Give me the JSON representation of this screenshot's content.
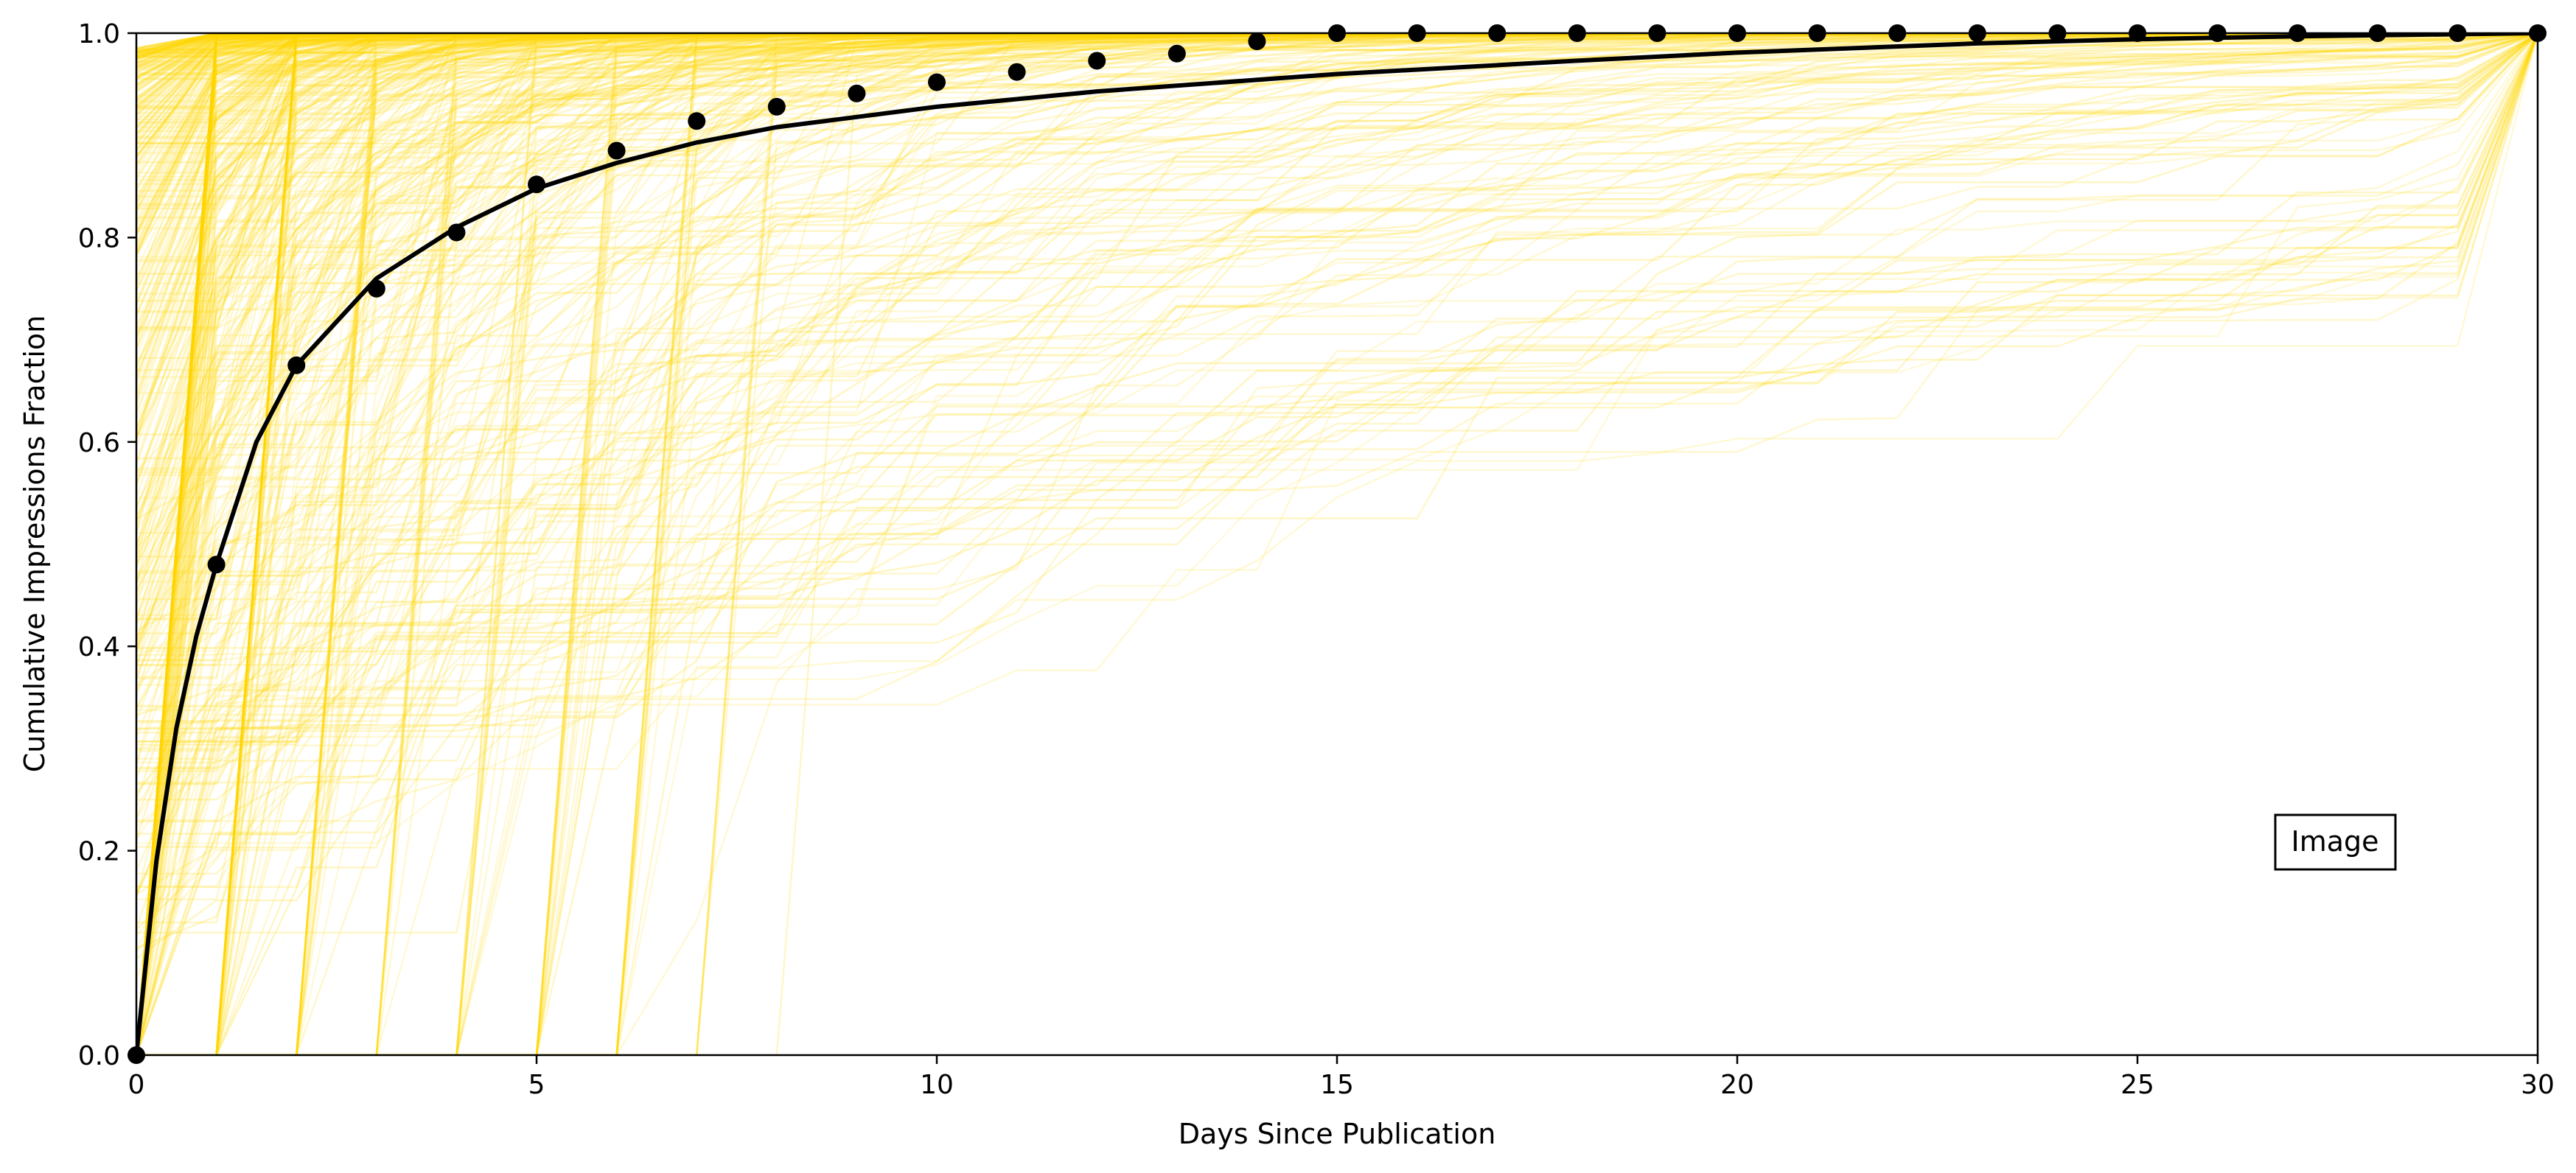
{
  "chart_data": {
    "type": "line",
    "title": "",
    "xlabel": "Days Since Publication",
    "ylabel": "Cumulative Impressions Fraction",
    "xlim": [
      0,
      30
    ],
    "ylim": [
      0,
      1
    ],
    "xticks": [
      0,
      5,
      10,
      15,
      20,
      25,
      30
    ],
    "yticks": [
      0.0,
      0.2,
      0.4,
      0.6,
      0.8,
      1.0
    ],
    "xtick_labels": [
      "0",
      "5",
      "10",
      "15",
      "20",
      "25",
      "30"
    ],
    "ytick_labels": [
      "0.0",
      "0.2",
      "0.4",
      "0.6",
      "0.8",
      "1.0"
    ],
    "grid": false,
    "legend": {
      "placement": "lower-right",
      "entries": [
        "Image"
      ]
    },
    "colors": {
      "individual_curves": "#FFD700",
      "mean_points": "#000000",
      "fit_curve": "#000000"
    },
    "mean_points": {
      "x": [
        0,
        1,
        2,
        3,
        4,
        5,
        6,
        7,
        8,
        9,
        10,
        11,
        12,
        13,
        14,
        15,
        16,
        17,
        18,
        19,
        20,
        21,
        22,
        23,
        24,
        25,
        26,
        27,
        28,
        29,
        30
      ],
      "y": [
        0.0,
        0.48,
        0.675,
        0.75,
        0.805,
        0.852,
        0.885,
        0.914,
        0.928,
        0.941,
        0.952,
        0.962,
        0.973,
        0.98,
        0.992,
        1.0,
        1.0,
        1.0,
        1.0,
        1.0,
        1.0,
        1.0,
        1.0,
        1.0,
        1.0,
        1.0,
        1.0,
        1.0,
        1.0,
        1.0,
        1.0
      ]
    },
    "fit_curve": {
      "x": [
        0,
        0.25,
        0.5,
        0.75,
        1,
        1.5,
        2,
        3,
        4,
        5,
        6,
        7,
        8,
        10,
        12,
        15,
        18,
        20,
        23,
        25,
        27,
        30
      ],
      "y": [
        0.0,
        0.19,
        0.32,
        0.41,
        0.48,
        0.6,
        0.675,
        0.76,
        0.81,
        0.848,
        0.873,
        0.893,
        0.908,
        0.928,
        0.943,
        0.96,
        0.973,
        0.981,
        0.99,
        0.994,
        0.997,
        1.0
      ]
    }
  }
}
